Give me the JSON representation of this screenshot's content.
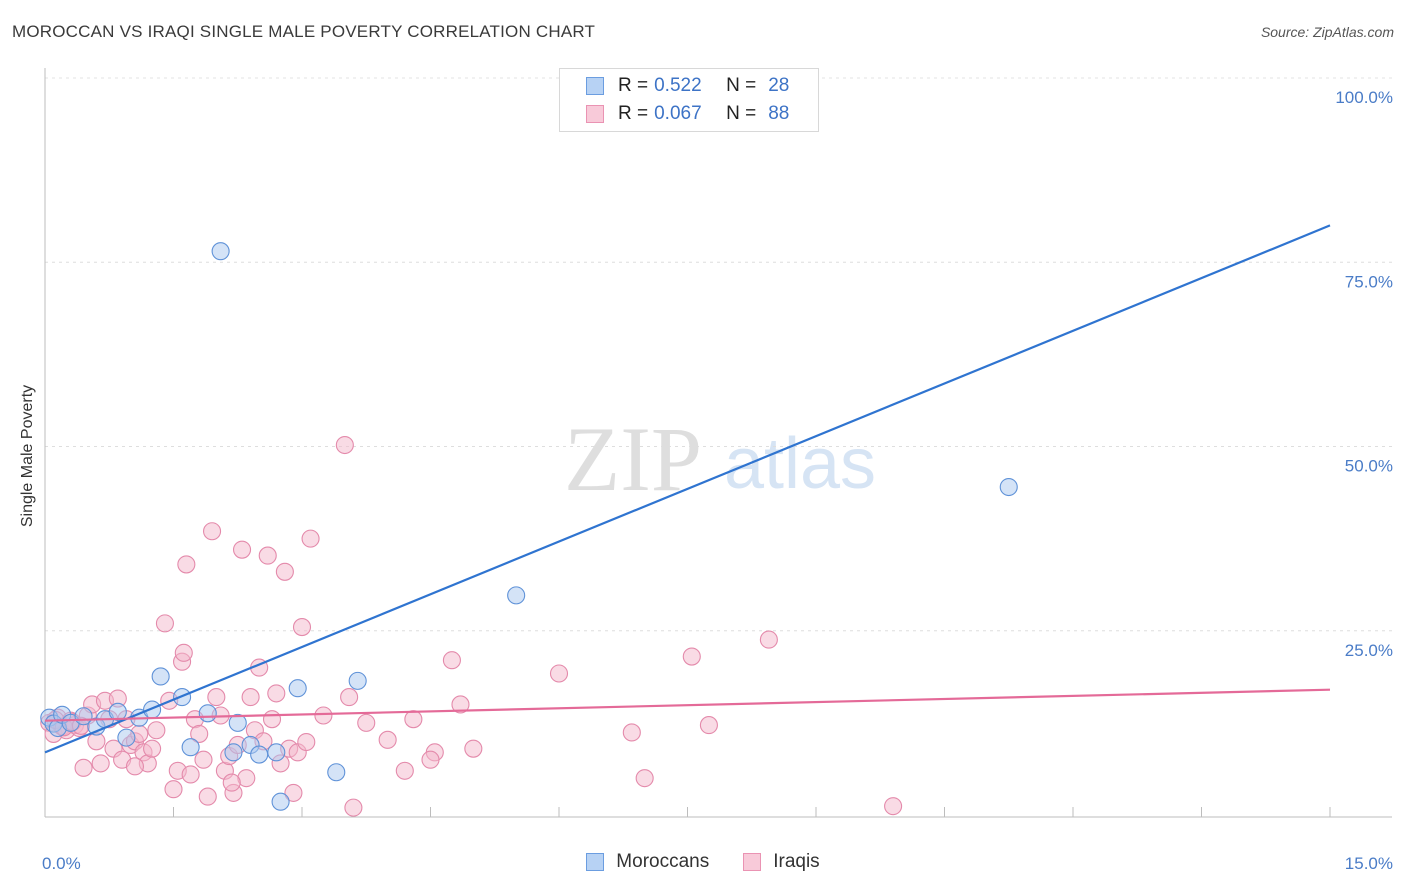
{
  "header": {
    "title": "MOROCCAN VS IRAQI SINGLE MALE POVERTY CORRELATION CHART",
    "source": "Source: ZipAtlas.com"
  },
  "watermark": {
    "zip": "ZIP",
    "atlas": "atlas"
  },
  "legend": {
    "rows": [
      {
        "r_label": "R =",
        "r_value": "0.522",
        "n_label": "N =",
        "n_value": "28"
      },
      {
        "r_label": "R =",
        "r_value": "0.067",
        "n_label": "N =",
        "n_value": "88"
      }
    ]
  },
  "bottom_legend": {
    "items": [
      "Moroccans",
      "Iraqis"
    ]
  },
  "chart_data": {
    "type": "scatter",
    "title": "MOROCCAN VS IRAQI SINGLE MALE POVERTY CORRELATION CHART",
    "xlabel": "",
    "ylabel": "Single Male Poverty",
    "xlim": [
      0,
      15
    ],
    "ylim": [
      0,
      100
    ],
    "x_ticks": [
      "0.0%",
      "15.0%"
    ],
    "y_ticks": [
      "100.0%",
      "75.0%",
      "50.0%",
      "25.0%"
    ],
    "y_tick_values": [
      100,
      75,
      50,
      25
    ],
    "grid": true,
    "legend_position": "top-center",
    "colors": {
      "moroccans": "#2f74d0",
      "iraqis": "#e46a98",
      "moroccans_fill": "#a9c8f0",
      "iraqis_fill": "#f4b8cc"
    },
    "series": [
      {
        "name": "Moroccans",
        "r": 0.522,
        "n": 28,
        "trend": {
          "x": [
            0,
            15
          ],
          "y": [
            8.5,
            80
          ]
        },
        "points": [
          [
            0.05,
            13.2
          ],
          [
            0.1,
            12.4
          ],
          [
            0.15,
            11.8
          ],
          [
            0.2,
            13.6
          ],
          [
            0.3,
            12.5
          ],
          [
            0.45,
            13.4
          ],
          [
            0.6,
            12.0
          ],
          [
            0.7,
            13.0
          ],
          [
            0.85,
            14.0
          ],
          [
            0.95,
            10.5
          ],
          [
            1.1,
            13.2
          ],
          [
            1.25,
            14.3
          ],
          [
            1.35,
            18.8
          ],
          [
            1.6,
            16.0
          ],
          [
            1.7,
            9.2
          ],
          [
            1.9,
            13.8
          ],
          [
            2.05,
            76.5
          ],
          [
            2.2,
            8.5
          ],
          [
            2.25,
            12.5
          ],
          [
            2.4,
            9.5
          ],
          [
            2.5,
            8.2
          ],
          [
            2.7,
            8.5
          ],
          [
            2.75,
            1.8
          ],
          [
            2.95,
            17.2
          ],
          [
            3.4,
            5.8
          ],
          [
            3.65,
            18.2
          ],
          [
            5.5,
            29.8
          ],
          [
            11.25,
            44.5
          ]
        ]
      },
      {
        "name": "Iraqis",
        "r": 0.067,
        "n": 88,
        "trend": {
          "x": [
            0,
            15
          ],
          "y": [
            12.8,
            17.0
          ]
        },
        "points": [
          [
            0.05,
            12.5
          ],
          [
            0.1,
            11.0
          ],
          [
            0.15,
            13.2
          ],
          [
            0.2,
            12.0
          ],
          [
            0.25,
            11.5
          ],
          [
            0.3,
            12.8
          ],
          [
            0.35,
            12.2
          ],
          [
            0.4,
            11.8
          ],
          [
            0.45,
            6.4
          ],
          [
            0.5,
            13.5
          ],
          [
            0.55,
            15.0
          ],
          [
            0.6,
            10.0
          ],
          [
            0.65,
            7.0
          ],
          [
            0.7,
            15.5
          ],
          [
            0.75,
            13.0
          ],
          [
            0.8,
            9.0
          ],
          [
            0.85,
            15.8
          ],
          [
            0.9,
            7.5
          ],
          [
            0.95,
            13.0
          ],
          [
            1.0,
            9.5
          ],
          [
            1.05,
            10.0
          ],
          [
            1.1,
            11.0
          ],
          [
            1.15,
            8.5
          ],
          [
            1.2,
            7.0
          ],
          [
            1.25,
            9.0
          ],
          [
            1.3,
            11.5
          ],
          [
            1.4,
            26.0
          ],
          [
            1.45,
            15.5
          ],
          [
            1.5,
            3.5
          ],
          [
            1.55,
            6.0
          ],
          [
            1.6,
            20.8
          ],
          [
            1.62,
            22.0
          ],
          [
            1.65,
            34.0
          ],
          [
            1.7,
            5.5
          ],
          [
            1.75,
            13.0
          ],
          [
            1.8,
            11.0
          ],
          [
            1.85,
            7.5
          ],
          [
            1.9,
            2.5
          ],
          [
            1.95,
            38.5
          ],
          [
            2.0,
            16.0
          ],
          [
            2.05,
            13.5
          ],
          [
            2.1,
            6.0
          ],
          [
            2.15,
            8.0
          ],
          [
            2.2,
            3.0
          ],
          [
            2.25,
            9.5
          ],
          [
            2.3,
            36.0
          ],
          [
            2.35,
            5.0
          ],
          [
            2.4,
            16.0
          ],
          [
            2.45,
            11.5
          ],
          [
            2.5,
            20.0
          ],
          [
            2.55,
            10.0
          ],
          [
            2.6,
            35.2
          ],
          [
            2.65,
            13.0
          ],
          [
            2.7,
            16.5
          ],
          [
            2.75,
            7.0
          ],
          [
            2.8,
            33.0
          ],
          [
            2.85,
            9.0
          ],
          [
            2.9,
            3.0
          ],
          [
            2.95,
            8.5
          ],
          [
            3.0,
            25.5
          ],
          [
            3.1,
            37.5
          ],
          [
            3.25,
            13.5
          ],
          [
            3.5,
            50.2
          ],
          [
            3.55,
            16.0
          ],
          [
            3.6,
            1.0
          ],
          [
            3.75,
            12.5
          ],
          [
            4.0,
            10.2
          ],
          [
            4.2,
            6.0
          ],
          [
            4.3,
            13.0
          ],
          [
            4.55,
            8.5
          ],
          [
            4.75,
            21.0
          ],
          [
            4.85,
            15.0
          ],
          [
            5.0,
            9.0
          ],
          [
            6.0,
            19.2
          ],
          [
            6.85,
            11.2
          ],
          [
            7.0,
            5.0
          ],
          [
            7.55,
            21.5
          ],
          [
            7.75,
            12.2
          ],
          [
            8.45,
            23.8
          ],
          [
            9.9,
            1.2
          ],
          [
            0.12,
            12.9
          ],
          [
            0.22,
            11.9
          ],
          [
            0.32,
            12.6
          ],
          [
            0.42,
            12.1
          ],
          [
            1.05,
            6.6
          ],
          [
            2.18,
            4.4
          ],
          [
            3.05,
            9.9
          ],
          [
            4.5,
            7.5
          ]
        ]
      }
    ]
  }
}
